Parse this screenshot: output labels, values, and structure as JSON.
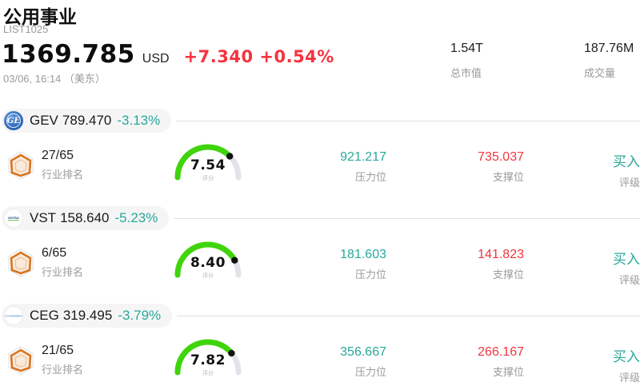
{
  "header": {
    "title": "公用事业",
    "list_id": "LIST1025",
    "price": "1369.785",
    "currency": "USD",
    "change": "+7.340 +0.54%",
    "timestamp": "03/06, 16:14 （美东）",
    "market_cap": {
      "value": "1.54T",
      "label": "总市值"
    },
    "volume": {
      "value": "187.76M",
      "label": "成交量"
    }
  },
  "labels": {
    "rank": "行业排名",
    "score": "评分",
    "pressure": "压力位",
    "support": "支撑位",
    "rating": "评级"
  },
  "colors": {
    "up_red": "#f5333f",
    "down_teal": "#28a89a",
    "gauge_green": "#3fd40b",
    "gauge_gray": "#e2e2ea",
    "gauge_dot": "#111111"
  },
  "stocks": [
    {
      "ticker": "GEV",
      "price": "789.470",
      "change_pct": "-3.13%",
      "logo_text": "GE",
      "rank": "27/65",
      "score": "7.54",
      "score_value": 7.54,
      "score_max": 10,
      "pressure": "921.217",
      "support": "735.037",
      "rating": "买入"
    },
    {
      "ticker": "VST",
      "price": "158.640",
      "change_pct": "-5.23%",
      "logo_text": "VISTRA",
      "rank": "6/65",
      "score": "8.40",
      "score_value": 8.4,
      "score_max": 10,
      "pressure": "181.603",
      "support": "141.823",
      "rating": "买入"
    },
    {
      "ticker": "CEG",
      "price": "319.495",
      "change_pct": "-3.79%",
      "logo_text": "Constellation",
      "rank": "21/65",
      "score": "7.82",
      "score_value": 7.82,
      "score_max": 10,
      "pressure": "356.667",
      "support": "266.167",
      "rating": "买入"
    }
  ]
}
